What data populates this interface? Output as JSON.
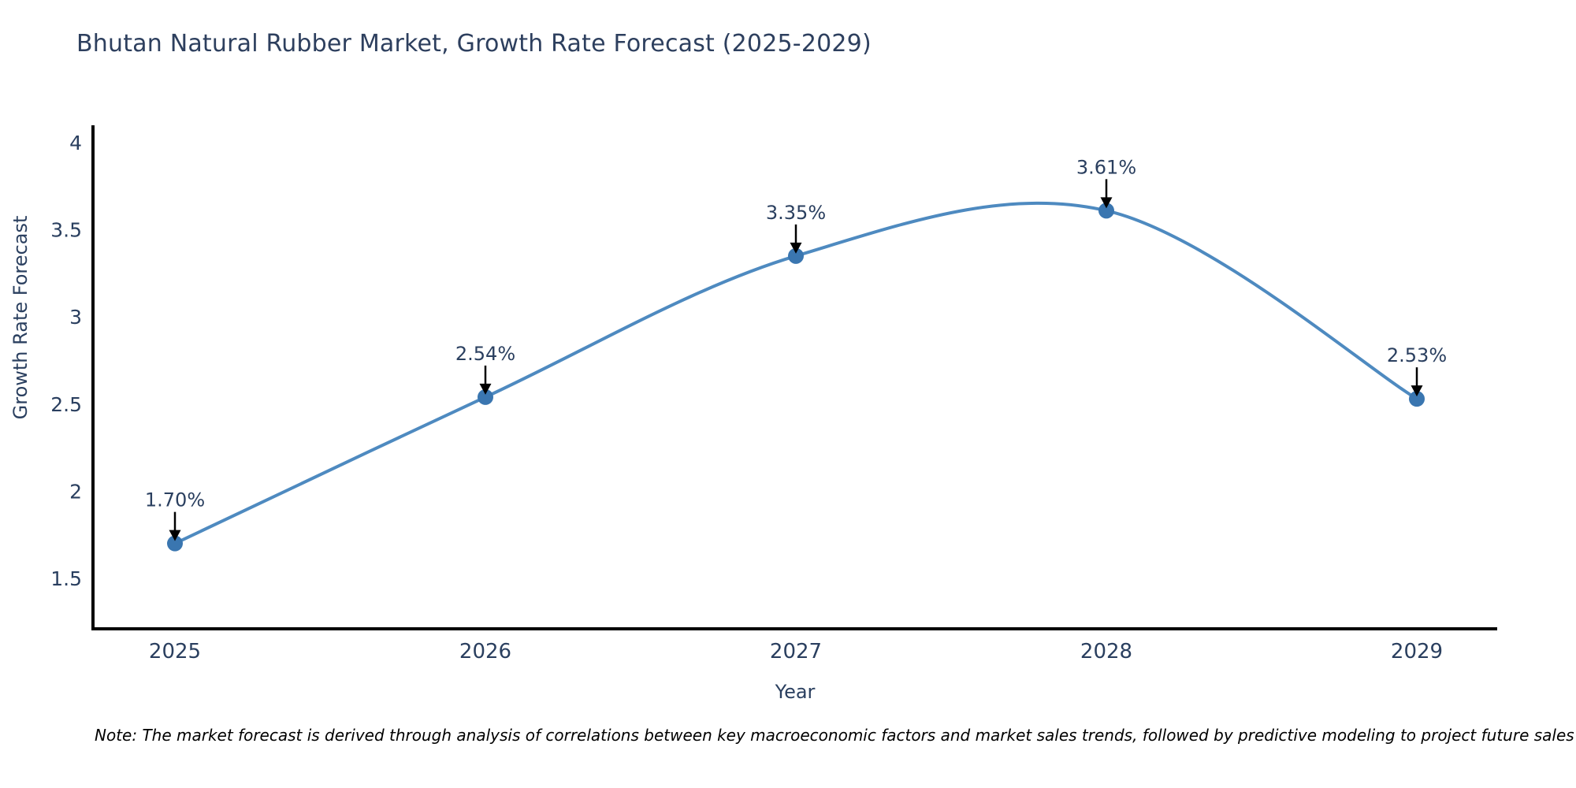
{
  "figure": {
    "title": "Bhutan Natural Rubber Market, Growth Rate Forecast (2025-2029)",
    "note": "Note: The market forecast is derived through analysis of correlations between key macroeconomic factors and market sales trends, followed by predictive modeling to project future sales"
  },
  "chart_data": {
    "type": "line",
    "title": "Bhutan Natural Rubber Market, Growth Rate Forecast (2025-2029)",
    "categories": [
      "2025",
      "2026",
      "2027",
      "2028",
      "2029"
    ],
    "values": [
      1.7,
      2.54,
      3.35,
      3.61,
      2.53
    ],
    "point_labels": [
      "1.70%",
      "2.54%",
      "3.35%",
      "3.61%",
      "2.53%"
    ],
    "series_name": "Growth Rate Forecast",
    "xlabel": "Year",
    "ylabel": "Growth Rate Forecast",
    "ytick_labels": [
      "1.5",
      "2",
      "2.5",
      "3",
      "3.5",
      "4"
    ],
    "ytick_values": [
      1.5,
      2,
      2.5,
      3,
      3.5,
      4
    ],
    "ylim": [
      1.21,
      4.1
    ],
    "grid": false,
    "legend_position": "none",
    "line_shape": "spline",
    "annotations_have_arrows": true,
    "colors": {
      "line": "#4e8ac0",
      "marker": "#3a76b0",
      "axis_line": "#000000",
      "tick_text": "#2a3f5f",
      "title_text": "#2d3f5e",
      "annotation_text": "#2a3f5f",
      "annotation_arrow": "#000000",
      "note_text": "#000000",
      "background": "#ffffff"
    }
  }
}
